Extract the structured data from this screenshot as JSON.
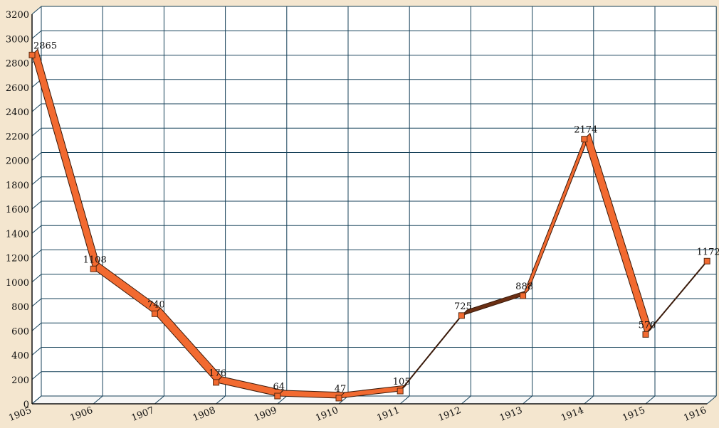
{
  "chart_data": {
    "type": "line",
    "style": "3d-ribbon",
    "x": [
      "1905",
      "1906",
      "1907",
      "1908",
      "1909",
      "1910",
      "1911",
      "1912",
      "1913",
      "1914",
      "1915",
      "1916"
    ],
    "series": [
      {
        "values": [
          2865,
          1108,
          740,
          176,
          64,
          47,
          105,
          725,
          888,
          2174,
          570,
          1172
        ],
        "color": "#f26a30",
        "dark_color": "#6b2f14"
      }
    ],
    "data_labels": [
      "2865",
      "1108",
      "740",
      "176",
      "64",
      "47",
      "105",
      "725",
      "888",
      "2174",
      "570",
      "1172"
    ],
    "y_ticks": [
      0,
      200,
      400,
      600,
      800,
      1000,
      1200,
      1400,
      1600,
      1800,
      2000,
      2200,
      2400,
      2600,
      2800,
      3000,
      3200
    ],
    "ylim": [
      0,
      3200
    ],
    "grid": true,
    "grid_color": "#17425a",
    "plot_background": "#ffffff",
    "page_background": "#f4e6cf",
    "title": "",
    "xlabel": "",
    "ylabel": ""
  }
}
